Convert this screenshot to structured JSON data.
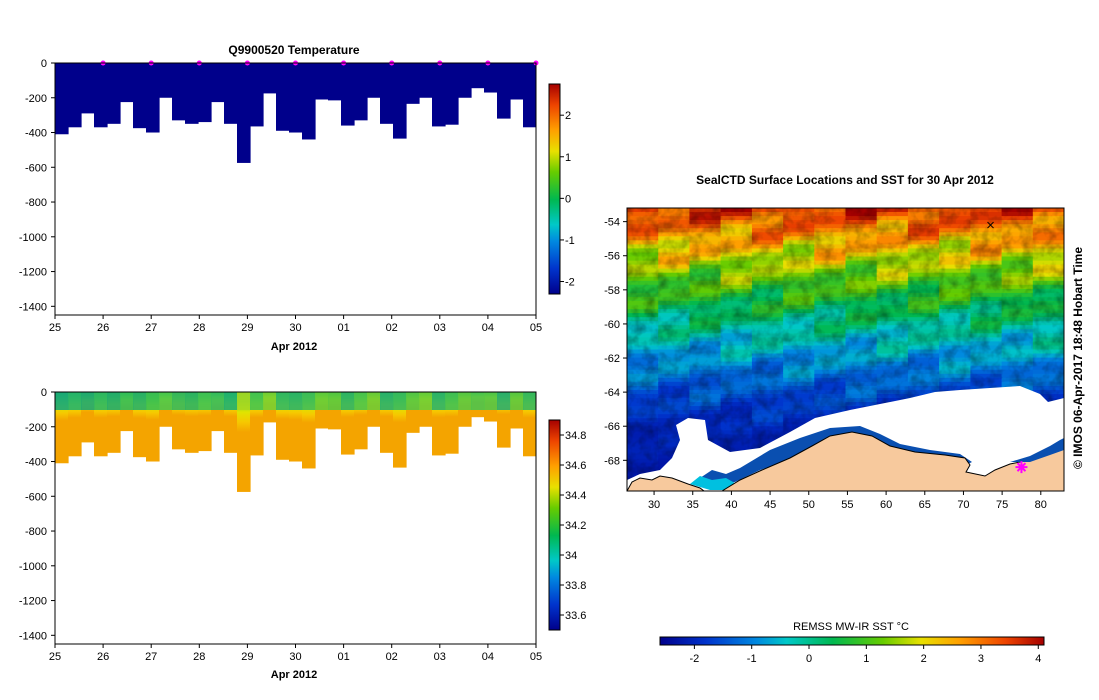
{
  "colors": {
    "profile_fill": "#00008b",
    "land": "#f7c99d",
    "ice": "#ffffff",
    "cast_marker": "#ff00ff"
  },
  "chart_data": [
    {
      "id": "temperature",
      "type": "heatmap",
      "title": "Q9900520  Temperature",
      "xlabel": "Apr 2012",
      "ylabel": "",
      "x_ticks": [
        "25",
        "26",
        "27",
        "28",
        "29",
        "30",
        "01",
        "02",
        "03",
        "04",
        "05"
      ],
      "xlim": [
        0,
        10
      ],
      "ylim": [
        -1450,
        0
      ],
      "y_ticks": [
        "0",
        "-200",
        "-400",
        "-600",
        "-800",
        "-1000",
        "-1200",
        "-1400"
      ],
      "y_tick_values": [
        0,
        -200,
        -400,
        -600,
        -800,
        -1000,
        -1200,
        -1400
      ],
      "profile_bottoms_m": [
        -410,
        -370,
        -290,
        -370,
        -350,
        -225,
        -375,
        -400,
        -200,
        -330,
        -350,
        -340,
        -225,
        -350,
        -575,
        -365,
        -175,
        -390,
        -400,
        -440,
        -210,
        -215,
        -360,
        -330,
        -200,
        -350,
        -435,
        -235,
        -200,
        -365,
        -355,
        -200,
        -145,
        -170,
        -320,
        -210,
        -370
      ],
      "cast_markers_day": [
        1,
        2,
        3,
        4,
        5,
        6,
        7,
        8,
        9,
        10
      ],
      "colorbar": {
        "min": -2.3,
        "max": 2.75,
        "ticks": [
          "-2",
          "-1",
          "0",
          "1",
          "2"
        ],
        "tick_values": [
          -2,
          -1,
          0,
          1,
          2
        ]
      }
    },
    {
      "id": "salinity",
      "type": "heatmap",
      "title": "",
      "xlabel": "Apr 2012",
      "ylabel": "",
      "x_ticks": [
        "25",
        "26",
        "27",
        "28",
        "29",
        "30",
        "01",
        "02",
        "03",
        "04",
        "05"
      ],
      "xlim": [
        0,
        10
      ],
      "ylim": [
        -1450,
        0
      ],
      "y_ticks": [
        "0",
        "-200",
        "-400",
        "-600",
        "-800",
        "-1000",
        "-1200",
        "-1400"
      ],
      "y_tick_values": [
        0,
        -200,
        -400,
        -600,
        -800,
        -1000,
        -1200,
        -1400
      ],
      "profile_bottoms_m": [
        -410,
        -370,
        -290,
        -370,
        -350,
        -225,
        -375,
        -400,
        -200,
        -330,
        -350,
        -340,
        -225,
        -350,
        -575,
        -365,
        -175,
        -390,
        -400,
        -440,
        -210,
        -215,
        -360,
        -330,
        -200,
        -350,
        -435,
        -235,
        -200,
        -365,
        -355,
        -200,
        -145,
        -170,
        -320,
        -210,
        -370
      ],
      "colorbar": {
        "min": 33.5,
        "max": 34.9,
        "ticks": [
          "33.6",
          "33.8",
          "34",
          "34.2",
          "34.4",
          "34.6",
          "34.8"
        ],
        "tick_values": [
          33.6,
          33.8,
          34.0,
          34.2,
          34.4,
          34.6,
          34.8
        ]
      }
    },
    {
      "id": "sst_map",
      "type": "heatmap",
      "title": "SealCTD Surface Locations and SST for 30 Apr 2012",
      "xlabel": "",
      "ylabel": "",
      "xlim": [
        26.5,
        83
      ],
      "ylim": [
        -69.8,
        -53.2
      ],
      "x_ticks": [
        "30",
        "35",
        "40",
        "45",
        "50",
        "55",
        "60",
        "65",
        "70",
        "75",
        "80"
      ],
      "x_tick_values": [
        30,
        35,
        40,
        45,
        50,
        55,
        60,
        65,
        70,
        75,
        80
      ],
      "y_ticks": [
        "-54",
        "-56",
        "-58",
        "-60",
        "-62",
        "-64",
        "-66",
        "-68"
      ],
      "y_tick_values": [
        -54,
        -56,
        -58,
        -60,
        -62,
        -64,
        -66,
        -68
      ],
      "sst_gradient_c": [
        {
          "lat": -53.2,
          "sst": 3.6
        },
        {
          "lat": -55.0,
          "sst": 2.6
        },
        {
          "lat": -56.5,
          "sst": 1.6
        },
        {
          "lat": -58.0,
          "sst": 0.9
        },
        {
          "lat": -60.0,
          "sst": 0.0
        },
        {
          "lat": -62.0,
          "sst": -0.8
        },
        {
          "lat": -64.0,
          "sst": -1.5
        },
        {
          "lat": -66.0,
          "sst": -2.0
        },
        {
          "lat": -69.8,
          "sst": -2.3
        }
      ],
      "cast_locations": [
        {
          "lon": 77.5,
          "lat": -68.4
        }
      ],
      "start_marker": {
        "lon": 73.5,
        "lat": -54.2
      },
      "colorbar": {
        "label": "REMSS MW-IR SST °C",
        "min": -2.6,
        "max": 4.1,
        "ticks": [
          "-2",
          "-1",
          "0",
          "1",
          "2",
          "3",
          "4"
        ],
        "tick_values": [
          -2,
          -1,
          0,
          1,
          2,
          3,
          4
        ]
      }
    }
  ],
  "credit": "© IMOS 06-Apr-2017 18:48 Hobart Time"
}
